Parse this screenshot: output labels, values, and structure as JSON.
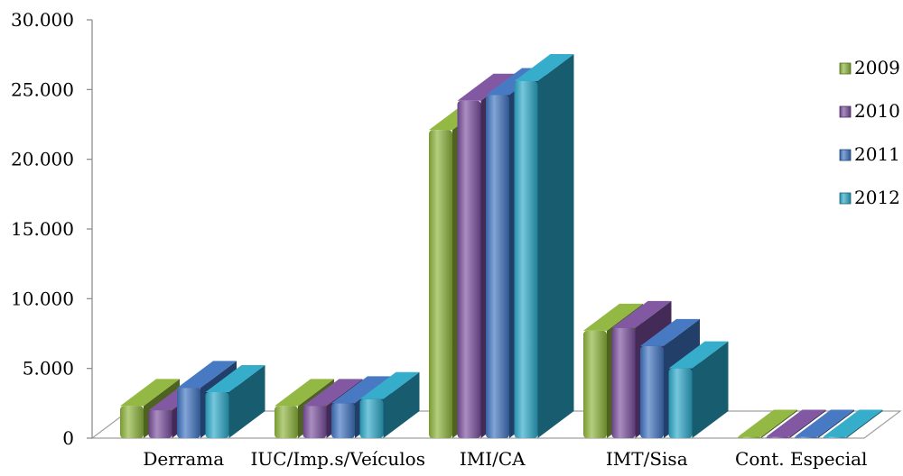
{
  "chart_data": {
    "type": "bar",
    "style": "3d-cylinder",
    "categories": [
      "Derrama",
      "IUC/Imp.s/Veículos",
      "IMI/CA",
      "IMT/Sisa",
      "Cont. Especial"
    ],
    "series": [
      {
        "name": "2009",
        "values": [
          2300,
          2300,
          22100,
          7700,
          0
        ],
        "color": "#8db43a"
      },
      {
        "name": "2010",
        "values": [
          2000,
          2300,
          24200,
          7900,
          0
        ],
        "color": "#7b4f9e"
      },
      {
        "name": "2011",
        "values": [
          3600,
          2500,
          24600,
          6600,
          0
        ],
        "color": "#3e73c0"
      },
      {
        "name": "2012",
        "values": [
          3300,
          2800,
          25600,
          5000,
          0
        ],
        "color": "#2ca9c9"
      }
    ],
    "yticks": [
      "0",
      "5.000",
      "10.000",
      "15.000",
      "20.000",
      "25.000",
      "30.000"
    ],
    "ylim": [
      0,
      30000
    ],
    "legend_position": "right",
    "grid": false
  }
}
